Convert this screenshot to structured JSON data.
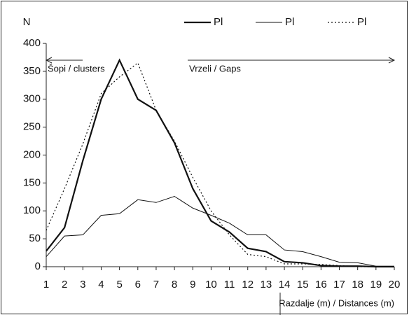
{
  "chart_data": {
    "type": "line",
    "y_label": "N",
    "x_label": "Razdalje (m) / Distances (m)",
    "annotations": [
      "Šopi / clusters",
      "Vrzeli / Gaps"
    ],
    "x": [
      1,
      2,
      3,
      4,
      5,
      6,
      7,
      8,
      9,
      10,
      11,
      12,
      13,
      14,
      15,
      16,
      17,
      18,
      19,
      20
    ],
    "xlim": [
      1,
      20
    ],
    "xticks": [
      1,
      2,
      3,
      4,
      5,
      6,
      7,
      8,
      9,
      10,
      11,
      12,
      13,
      14,
      15,
      16,
      17,
      18,
      19,
      20
    ],
    "ylim": [
      0,
      400
    ],
    "yticks": [
      0,
      50,
      100,
      150,
      200,
      250,
      300,
      350,
      400
    ],
    "series": [
      {
        "name": "Pl",
        "color": "#111111",
        "line_width": 2.2,
        "dashed": false,
        "values": [
          28,
          70,
          190,
          300,
          370,
          300,
          280,
          222,
          140,
          82,
          62,
          33,
          27,
          9,
          7,
          2,
          1,
          1,
          0,
          0
        ]
      },
      {
        "name": "Pl",
        "color": "#111111",
        "line_width": 1,
        "dashed": false,
        "values": [
          18,
          55,
          57,
          92,
          95,
          120,
          115,
          126,
          105,
          92,
          78,
          57,
          57,
          30,
          27,
          18,
          8,
          7,
          1,
          1
        ]
      },
      {
        "name": "Pl",
        "color": "#111111",
        "line_width": 1.2,
        "dashed": true,
        "values": [
          65,
          140,
          220,
          310,
          340,
          365,
          280,
          225,
          160,
          100,
          57,
          22,
          18,
          5,
          5,
          4,
          2,
          0,
          0,
          0
        ]
      }
    ]
  }
}
